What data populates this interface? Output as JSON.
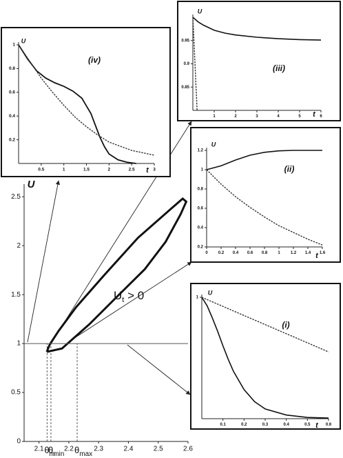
{
  "chart_data": [
    {
      "type": "line",
      "y_label": "U",
      "xlim": [
        2.05,
        2.6
      ],
      "ylim": [
        0,
        2.6
      ],
      "xticks": [
        2.1,
        2.2,
        2.3,
        2.4,
        2.5,
        2.6
      ],
      "yticks": [
        0,
        0.5,
        1,
        1.5,
        2,
        2.5
      ],
      "series": [
        {
          "color": "#111111",
          "dash": false,
          "width": 3,
          "x": [
            2.126,
            2.177,
            2.27,
            2.362,
            2.455,
            2.525,
            2.575,
            2.594,
            2.582,
            2.548,
            2.432,
            2.316,
            2.224,
            2.166,
            2.136,
            2.126
          ],
          "values": [
            0.915,
            0.95,
            1.2,
            1.48,
            1.76,
            2.04,
            2.32,
            2.45,
            2.48,
            2.39,
            2.08,
            1.69,
            1.37,
            1.13,
            0.99,
            0.915
          ]
        },
        {
          "color": "#555555",
          "dash": false,
          "width": 1,
          "x": [
            2.05,
            2.6
          ],
          "values": [
            1,
            1
          ]
        }
      ],
      "markers": [
        {
          "value": 2.127,
          "symbol": "θ",
          "sub": "m"
        },
        {
          "value": 2.14,
          "symbol": "θ",
          "sub": "min"
        },
        {
          "value": 2.228,
          "symbol": "θ",
          "sub": "max"
        }
      ],
      "annotation": {
        "main": "U",
        "sub": "t",
        "rest": " > 0"
      }
    },
    {
      "type": "line",
      "title": "(iv)",
      "x_label": "t",
      "y_label": "U",
      "xlim": [
        0,
        3
      ],
      "ylim": [
        0,
        1
      ],
      "xticks": [
        0.5,
        1,
        1.5,
        2,
        2.5,
        3
      ],
      "yticks": [
        0.2,
        0.4,
        0.6,
        0.8,
        1
      ],
      "series": [
        {
          "color": "#111111",
          "dash": false,
          "width": 1.8,
          "x": [
            0,
            0.2,
            0.4,
            0.6,
            0.8,
            1,
            1.2,
            1.4,
            1.6,
            1.7,
            1.8,
            1.9,
            2,
            2.2,
            2.4,
            2.6
          ],
          "values": [
            1,
            0.88,
            0.78,
            0.72,
            0.68,
            0.65,
            0.61,
            0.55,
            0.42,
            0.32,
            0.22,
            0.14,
            0.08,
            0.03,
            0.01,
            0
          ]
        },
        {
          "color": "#333333",
          "dash": true,
          "width": 1.4,
          "x": [
            0,
            0.25,
            0.5,
            0.75,
            1,
            1.25,
            1.5,
            1.75,
            2,
            2.5,
            3
          ],
          "values": [
            1,
            0.86,
            0.72,
            0.6,
            0.49,
            0.39,
            0.31,
            0.24,
            0.18,
            0.11,
            0.07
          ]
        }
      ]
    },
    {
      "type": "line",
      "title": "(iii)",
      "x_label": "t",
      "y_label": "U",
      "xlim": [
        0,
        6
      ],
      "ylim": [
        0.8,
        1.0
      ],
      "xticks": [
        1,
        2,
        3,
        4,
        5,
        6
      ],
      "yticks": [
        0.85,
        0.9,
        0.95
      ],
      "series": [
        {
          "color": "#111111",
          "dash": false,
          "width": 1.6,
          "x": [
            0,
            0.25,
            0.5,
            1,
            1.5,
            2,
            3,
            4,
            5,
            6
          ],
          "values": [
            1,
            0.99,
            0.983,
            0.972,
            0.966,
            0.962,
            0.957,
            0.954,
            0.952,
            0.951
          ]
        },
        {
          "color": "#333333",
          "dash": true,
          "width": 1.4,
          "x": [
            0,
            0.05,
            0.1,
            0.15,
            0.2
          ],
          "values": [
            1,
            0.95,
            0.9,
            0.85,
            0.8
          ]
        }
      ]
    },
    {
      "type": "line",
      "title": "(ii)",
      "x_label": "t",
      "y_label": "U",
      "xlim": [
        0,
        1.6
      ],
      "ylim": [
        0.2,
        1.2
      ],
      "xticks": [
        0,
        0.2,
        0.4,
        0.6,
        0.8,
        1,
        1.2,
        1.4,
        1.6
      ],
      "yticks": [
        0.2,
        0.4,
        0.6,
        0.8,
        1,
        1.2
      ],
      "series": [
        {
          "color": "#111111",
          "dash": false,
          "width": 1.6,
          "x": [
            0,
            0.2,
            0.4,
            0.6,
            0.8,
            1,
            1.2,
            1.4,
            1.6
          ],
          "values": [
            1,
            1.04,
            1.1,
            1.15,
            1.18,
            1.195,
            1.2,
            1.2,
            1.2
          ]
        },
        {
          "color": "#333333",
          "dash": true,
          "width": 1.4,
          "x": [
            0,
            0.2,
            0.4,
            0.6,
            0.8,
            1,
            1.2,
            1.4,
            1.6
          ],
          "values": [
            1,
            0.85,
            0.72,
            0.61,
            0.51,
            0.42,
            0.35,
            0.28,
            0.22
          ]
        }
      ]
    },
    {
      "type": "line",
      "title": "(i)",
      "x_label": "t",
      "y_label": "U",
      "xlim": [
        0,
        0.6
      ],
      "ylim": [
        0,
        1
      ],
      "xticks": [
        0.1,
        0.2,
        0.3,
        0.4,
        0.5,
        0.6
      ],
      "yticks": [
        1
      ],
      "series": [
        {
          "color": "#111111",
          "dash": false,
          "width": 1.6,
          "x": [
            0,
            0.025,
            0.05,
            0.075,
            0.1,
            0.125,
            0.15,
            0.2,
            0.25,
            0.3,
            0.4,
            0.5,
            0.6
          ],
          "values": [
            1,
            0.93,
            0.83,
            0.72,
            0.6,
            0.49,
            0.39,
            0.24,
            0.14,
            0.08,
            0.03,
            0.01,
            0.005
          ]
        },
        {
          "color": "#333333",
          "dash": true,
          "width": 1.4,
          "x": [
            0,
            0.2,
            0.4,
            0.6
          ],
          "values": [
            1,
            0.85,
            0.7,
            0.55
          ]
        }
      ]
    }
  ]
}
